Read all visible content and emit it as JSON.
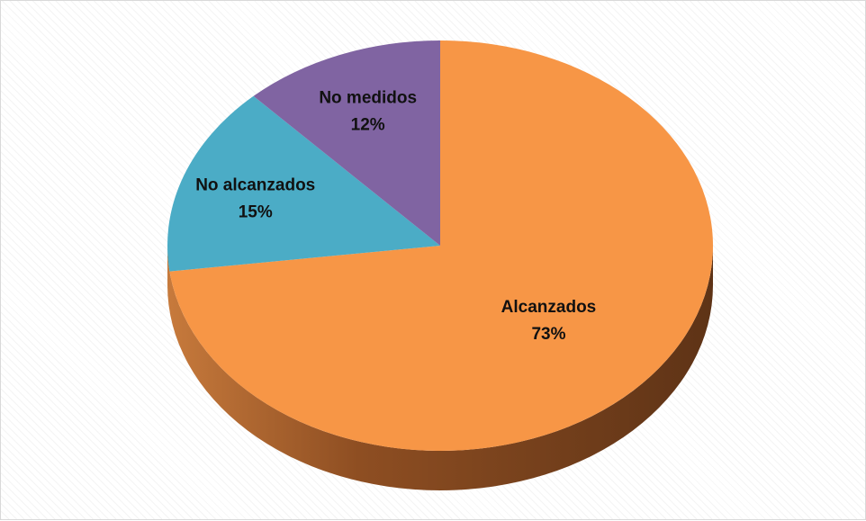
{
  "chart_data": {
    "type": "pie",
    "style": "3d",
    "slices": [
      {
        "label": "Alcanzados",
        "value": 73,
        "value_label": "73%",
        "color": "#f79646",
        "side_color": "#b8662a"
      },
      {
        "label": "No alcanzados",
        "value": 15,
        "value_label": "15%",
        "color": "#4bacc6",
        "side_color": "#2e7f95"
      },
      {
        "label": "No medidos",
        "value": 12,
        "value_label": "12%",
        "color": "#8064a2",
        "side_color": "#5a4477"
      }
    ],
    "start_angle_deg": 0,
    "direction": "clockwise"
  }
}
